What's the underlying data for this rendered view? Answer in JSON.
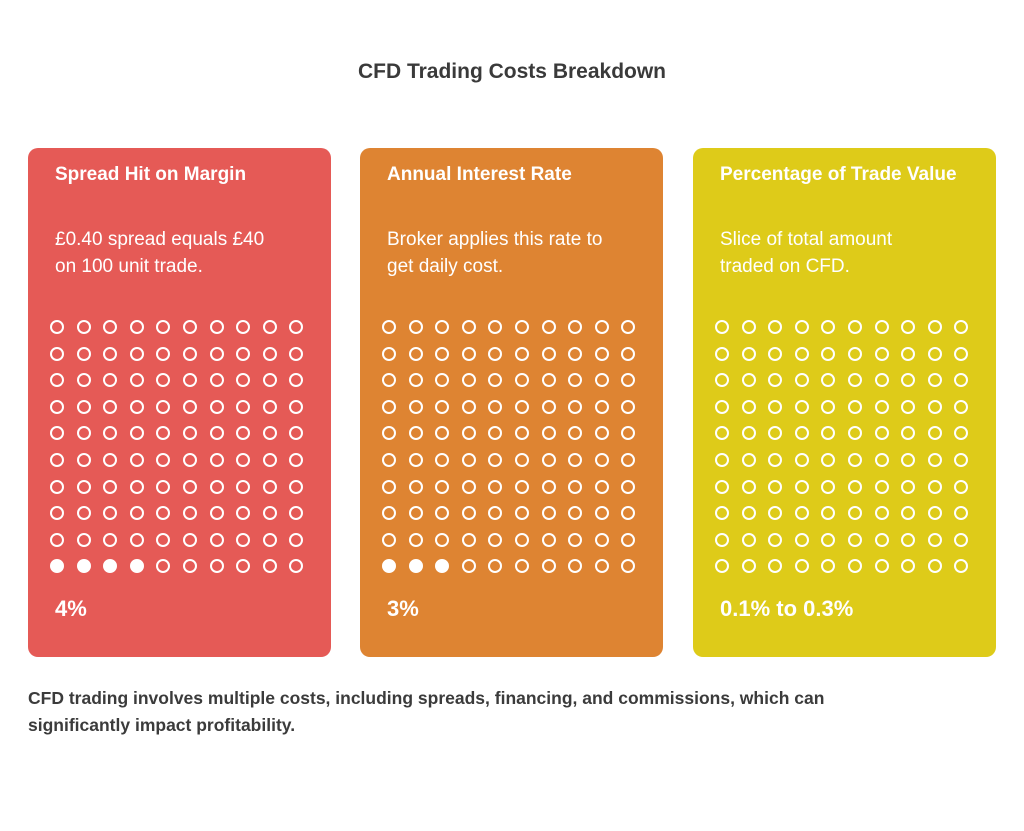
{
  "chart_data": {
    "type": "waffle",
    "title": "CFD Trading Costs Breakdown",
    "grid": {
      "rows": 10,
      "cols": 10,
      "total": 100
    },
    "cards": [
      {
        "heading": "Spread Hit on Margin",
        "description": "£0.40 spread equals £40 on 100 unit trade.",
        "value_label": "4%",
        "filled": 4,
        "color": "#e55a56"
      },
      {
        "heading": "Annual Interest Rate",
        "description": "Broker applies this rate to get daily cost.",
        "value_label": "3%",
        "filled": 3,
        "color": "#de8432"
      },
      {
        "heading": "Percentage of Trade Value",
        "description": "Slice of total amount traded on CFD.",
        "value_label": "0.1% to 0.3%",
        "filled": 0,
        "color": "#decb19"
      }
    ],
    "footer": "CFD trading involves multiple costs, including spreads, financing, and commissions, which can significantly impact profitability."
  }
}
